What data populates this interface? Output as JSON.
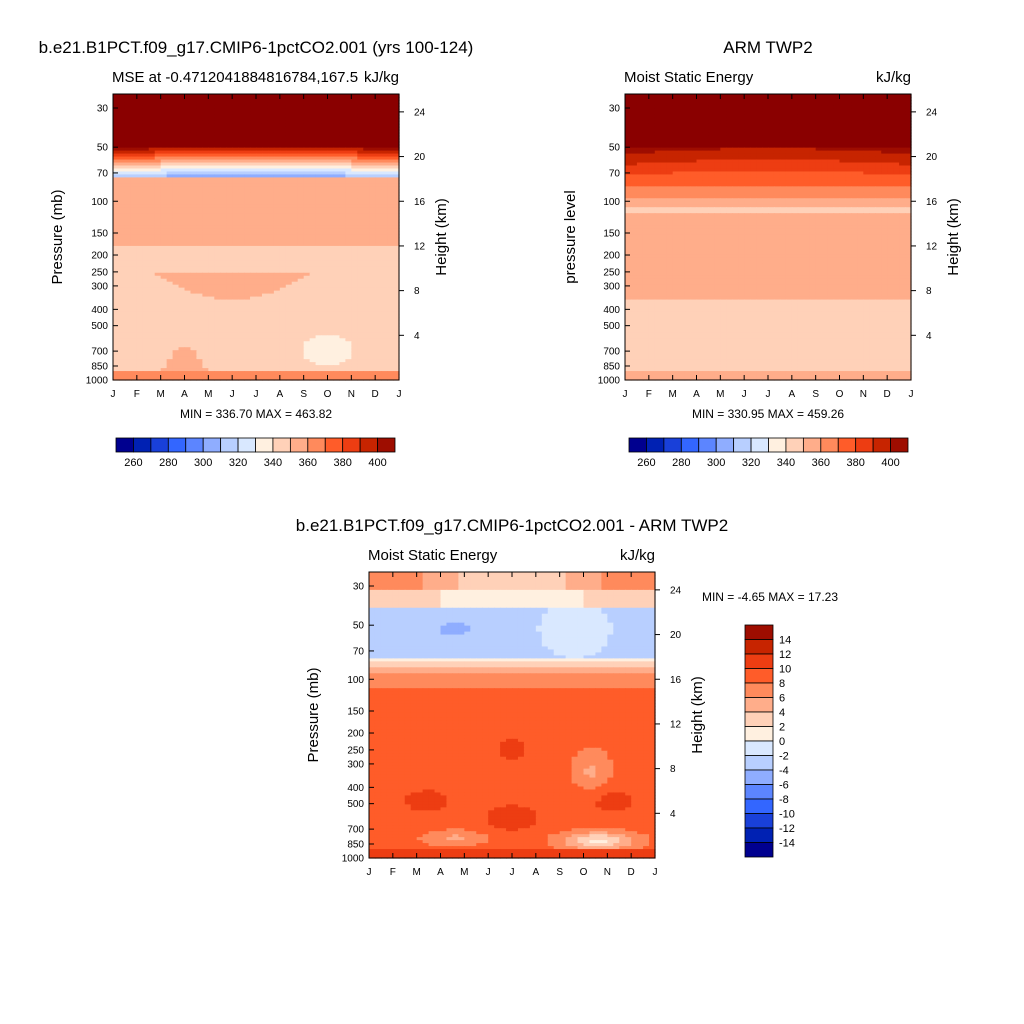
{
  "colors": {
    "mse_palette": [
      "#00008f",
      "#0021b3",
      "#1940d9",
      "#3366ff",
      "#5c85ff",
      "#8fadff",
      "#b8cfff",
      "#d9e8ff",
      "#fff0e0",
      "#ffd1b8",
      "#ffad8a",
      "#ff8a5c",
      "#ff5c29",
      "#ed3d12",
      "#c72400",
      "#9e0d00",
      "#8a0000"
    ],
    "diff_palette": [
      "#00008f",
      "#0021b3",
      "#1940d9",
      "#3366ff",
      "#5c85ff",
      "#8fadff",
      "#b8cfff",
      "#d9e8ff",
      "#fff0e0",
      "#ffd1b8",
      "#ffad8a",
      "#ff8a5c",
      "#ff5c29",
      "#ed3d12",
      "#c72400",
      "#9e0d00",
      "#8a0000"
    ]
  },
  "chart_data": [
    {
      "type": "heatmap",
      "title": "b.e21.B1PCT.f09_g17.CMIP6-1pctCO2.001 (yrs 100-124)",
      "left_label": "MSE at -0.4712041884816784,167.5",
      "right_label": "kJ/kg",
      "ylabel": "Pressure (mb)",
      "ylabel_right": "Height (km)",
      "x_ticks": [
        "J",
        "F",
        "M",
        "A",
        "M",
        "J",
        "J",
        "A",
        "S",
        "O",
        "N",
        "D",
        "J"
      ],
      "y_ticks": [
        "30",
        "50",
        "70",
        "100",
        "150",
        "200",
        "250",
        "300",
        "400",
        "500",
        "700",
        "850",
        "1000"
      ],
      "y_ticks_right": [
        "24",
        "20",
        "16",
        "12",
        "8",
        "4"
      ],
      "stats": "MIN = 336.70 MAX = 463.82",
      "colorbar_labels": [
        "260",
        "280",
        "300",
        "320",
        "340",
        "360",
        "380",
        "400"
      ],
      "colorbar_levels": [
        250,
        260,
        270,
        280,
        290,
        300,
        310,
        320,
        330,
        340,
        350,
        360,
        370,
        380,
        390,
        400
      ]
    },
    {
      "type": "heatmap",
      "title": "ARM TWP2",
      "left_label": "Moist Static Energy",
      "right_label": "kJ/kg",
      "ylabel": "pressure level",
      "ylabel_right": "Height (km)",
      "x_ticks": [
        "J",
        "F",
        "M",
        "A",
        "M",
        "J",
        "J",
        "A",
        "S",
        "O",
        "N",
        "D",
        "J"
      ],
      "y_ticks": [
        "30",
        "50",
        "70",
        "100",
        "150",
        "200",
        "250",
        "300",
        "400",
        "500",
        "700",
        "850",
        "1000"
      ],
      "y_ticks_right": [
        "24",
        "20",
        "16",
        "12",
        "8",
        "4"
      ],
      "stats": "MIN = 330.95 MAX = 459.26",
      "colorbar_labels": [
        "260",
        "280",
        "300",
        "320",
        "340",
        "360",
        "380",
        "400"
      ],
      "colorbar_levels": [
        250,
        260,
        270,
        280,
        290,
        300,
        310,
        320,
        330,
        340,
        350,
        360,
        370,
        380,
        390,
        400
      ]
    },
    {
      "type": "heatmap",
      "title": "b.e21.B1PCT.f09_g17.CMIP6-1pctCO2.001 - ARM TWP2",
      "left_label": "Moist Static Energy",
      "right_label": "kJ/kg",
      "ylabel": "Pressure (mb)",
      "ylabel_right": "Height (km)",
      "x_ticks": [
        "J",
        "F",
        "M",
        "A",
        "M",
        "J",
        "J",
        "A",
        "S",
        "O",
        "N",
        "D",
        "J"
      ],
      "y_ticks": [
        "30",
        "50",
        "70",
        "100",
        "150",
        "200",
        "250",
        "300",
        "400",
        "500",
        "700",
        "850",
        "1000"
      ],
      "y_ticks_right": [
        "24",
        "20",
        "16",
        "12",
        "8",
        "4"
      ],
      "stats": "MIN =  -4.65 MAX =  17.23",
      "colorbar_labels": [
        "14",
        "12",
        "10",
        "8",
        "6",
        "4",
        "2",
        "0",
        "-2",
        "-4",
        "-6",
        "-8",
        "-10",
        "-12",
        "-14"
      ],
      "colorbar_levels": [
        -14,
        -12,
        -10,
        -8,
        -6,
        -4,
        -2,
        0,
        2,
        4,
        6,
        8,
        10,
        12,
        14
      ]
    }
  ]
}
